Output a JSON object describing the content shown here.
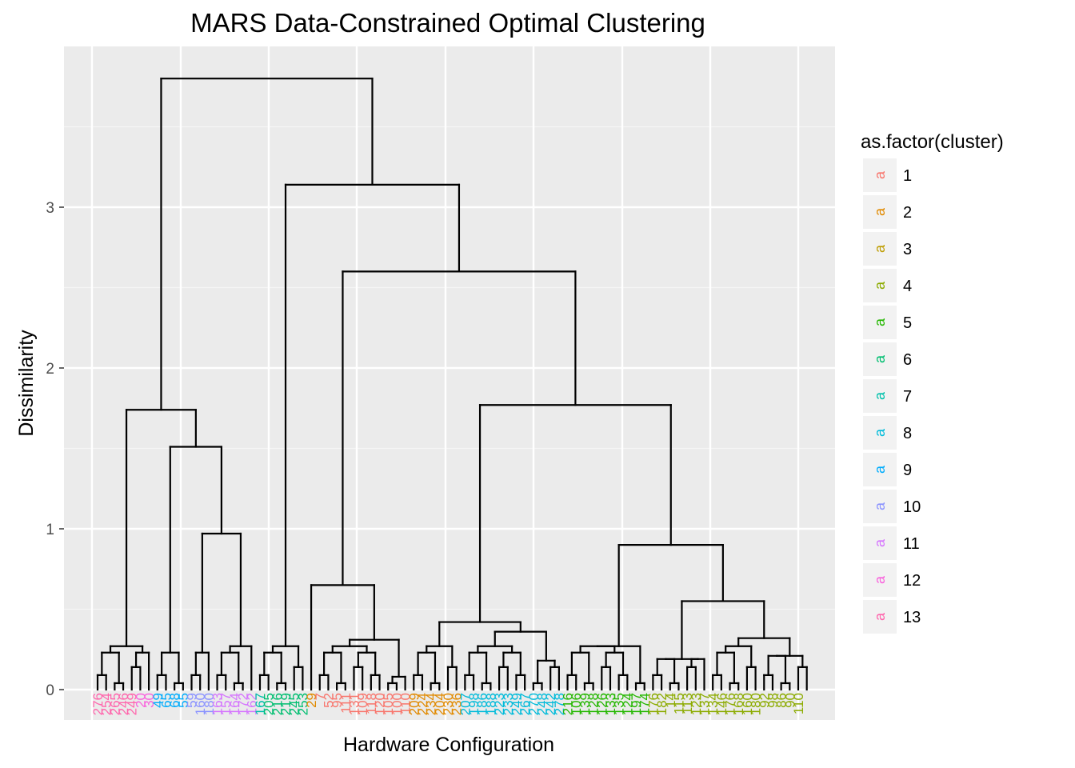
{
  "chart_data": {
    "type": "dendrogram",
    "title": "MARS Data-Constrained Optimal Clustering",
    "xlabel": "Hardware Configuration",
    "ylabel": "Dissimilarity",
    "ylim": [
      -0.2,
      3.95
    ],
    "y_ticks": [
      0,
      1,
      2,
      3
    ],
    "grid": true,
    "legend": {
      "title": "as.factor(cluster)",
      "position": "right",
      "key_glyph": "a",
      "entries": [
        {
          "label": "1",
          "color": "#F8766D"
        },
        {
          "label": "2",
          "color": "#E18A00"
        },
        {
          "label": "3",
          "color": "#BE9C00"
        },
        {
          "label": "4",
          "color": "#8CAB00"
        },
        {
          "label": "5",
          "color": "#24B700"
        },
        {
          "label": "6",
          "color": "#00BE70"
        },
        {
          "label": "7",
          "color": "#00C1AB"
        },
        {
          "label": "8",
          "color": "#00BBDA"
        },
        {
          "label": "9",
          "color": "#00ACFC"
        },
        {
          "label": "10",
          "color": "#8B93FF"
        },
        {
          "label": "11",
          "color": "#D575FE"
        },
        {
          "label": "12",
          "color": "#F962DD"
        },
        {
          "label": "13",
          "color": "#FF65AC"
        }
      ]
    },
    "merges": [
      {
        "x1": 1,
        "x2": 4.5,
        "h": 3.8
      },
      {
        "x1": 4.5,
        "x2": 9,
        "h": 3.14
      },
      {
        "x1": 7,
        "x2": 10,
        "h": 2.6
      },
      {
        "x1": 1,
        "x2": 3,
        "h": 1.74
      },
      {
        "x1": 9,
        "x2": 12,
        "h": 1.77
      },
      {
        "x1": 2,
        "x2": 4,
        "h": 1.51
      },
      {
        "x1": 11,
        "x2": 13,
        "h": 0.9
      },
      {
        "x1": 3,
        "x2": 5,
        "h": 0.97
      },
      {
        "x1": 12,
        "x2": 14,
        "h": 0.55
      },
      {
        "x1": 4,
        "x2": 6,
        "h": 0.62
      },
      {
        "x1": 5,
        "x2": 8,
        "h": 0.65
      },
      {
        "x1": 6,
        "x2": 9,
        "h": 0.44
      }
    ],
    "leaves": [
      {
        "label": "276",
        "cluster": "13"
      },
      {
        "label": "254",
        "cluster": "13"
      },
      {
        "label": "265",
        "cluster": "13"
      },
      {
        "label": "246",
        "cluster": "13"
      },
      {
        "label": "249",
        "cluster": "13"
      },
      {
        "label": "20",
        "cluster": "12"
      },
      {
        "label": "30",
        "cluster": "12"
      },
      {
        "label": "49",
        "cluster": "9"
      },
      {
        "label": "65",
        "cluster": "9"
      },
      {
        "label": "68",
        "cluster": "9"
      },
      {
        "label": "55",
        "cluster": "9"
      },
      {
        "label": "59",
        "cluster": "10"
      },
      {
        "label": "160",
        "cluster": "10"
      },
      {
        "label": "180",
        "cluster": "10"
      },
      {
        "label": "163",
        "cluster": "11"
      },
      {
        "label": "157",
        "cluster": "11"
      },
      {
        "label": "164",
        "cluster": "11"
      },
      {
        "label": "172",
        "cluster": "11"
      },
      {
        "label": "162",
        "cluster": "11"
      },
      {
        "label": "167",
        "cluster": "7"
      },
      {
        "label": "205",
        "cluster": "6"
      },
      {
        "label": "216",
        "cluster": "6"
      },
      {
        "label": "219",
        "cluster": "6"
      },
      {
        "label": "245",
        "cluster": "6"
      },
      {
        "label": "253",
        "cluster": "6"
      },
      {
        "label": "29",
        "cluster": "2"
      },
      {
        "label": "7",
        "cluster": "1"
      },
      {
        "label": "52",
        "cluster": "1"
      },
      {
        "label": "95",
        "cluster": "1"
      },
      {
        "label": "111",
        "cluster": "1"
      },
      {
        "label": "131",
        "cluster": "1"
      },
      {
        "label": "109",
        "cluster": "1"
      },
      {
        "label": "118",
        "cluster": "1"
      },
      {
        "label": "120",
        "cluster": "1"
      },
      {
        "label": "105",
        "cluster": "1"
      },
      {
        "label": "100",
        "cluster": "1"
      },
      {
        "label": "110",
        "cluster": "1"
      },
      {
        "label": "209",
        "cluster": "2"
      },
      {
        "label": "224",
        "cluster": "2"
      },
      {
        "label": "234",
        "cluster": "2"
      },
      {
        "label": "204",
        "cluster": "2"
      },
      {
        "label": "230",
        "cluster": "2"
      },
      {
        "label": "236",
        "cluster": "2"
      },
      {
        "label": "207",
        "cluster": "8"
      },
      {
        "label": "198",
        "cluster": "8"
      },
      {
        "label": "186",
        "cluster": "8"
      },
      {
        "label": "188",
        "cluster": "8"
      },
      {
        "label": "223",
        "cluster": "8"
      },
      {
        "label": "233",
        "cluster": "8"
      },
      {
        "label": "249",
        "cluster": "8"
      },
      {
        "label": "267",
        "cluster": "8"
      },
      {
        "label": "270",
        "cluster": "8"
      },
      {
        "label": "248",
        "cluster": "8"
      },
      {
        "label": "242",
        "cluster": "8"
      },
      {
        "label": "278",
        "cluster": "8"
      },
      {
        "label": "216",
        "cluster": "5"
      },
      {
        "label": "106",
        "cluster": "5"
      },
      {
        "label": "139",
        "cluster": "5"
      },
      {
        "label": "128",
        "cluster": "5"
      },
      {
        "label": "126",
        "cluster": "5"
      },
      {
        "label": "133",
        "cluster": "5"
      },
      {
        "label": "135",
        "cluster": "5"
      },
      {
        "label": "124",
        "cluster": "5"
      },
      {
        "label": "197",
        "cluster": "5"
      },
      {
        "label": "174",
        "cluster": "5"
      },
      {
        "label": "176",
        "cluster": "4"
      },
      {
        "label": "182",
        "cluster": "4"
      },
      {
        "label": "14",
        "cluster": "4"
      },
      {
        "label": "115",
        "cluster": "4"
      },
      {
        "label": "113",
        "cluster": "4"
      },
      {
        "label": "123",
        "cluster": "4"
      },
      {
        "label": "137",
        "cluster": "4"
      },
      {
        "label": "134",
        "cluster": "4"
      },
      {
        "label": "146",
        "cluster": "4"
      },
      {
        "label": "176",
        "cluster": "4"
      },
      {
        "label": "168",
        "cluster": "4"
      },
      {
        "label": "160",
        "cluster": "4"
      },
      {
        "label": "180",
        "cluster": "4"
      },
      {
        "label": "92",
        "cluster": "4"
      },
      {
        "label": "98",
        "cluster": "4"
      },
      {
        "label": "86",
        "cluster": "4"
      },
      {
        "label": "90",
        "cluster": "4"
      },
      {
        "label": "110",
        "cluster": "4"
      }
    ]
  }
}
